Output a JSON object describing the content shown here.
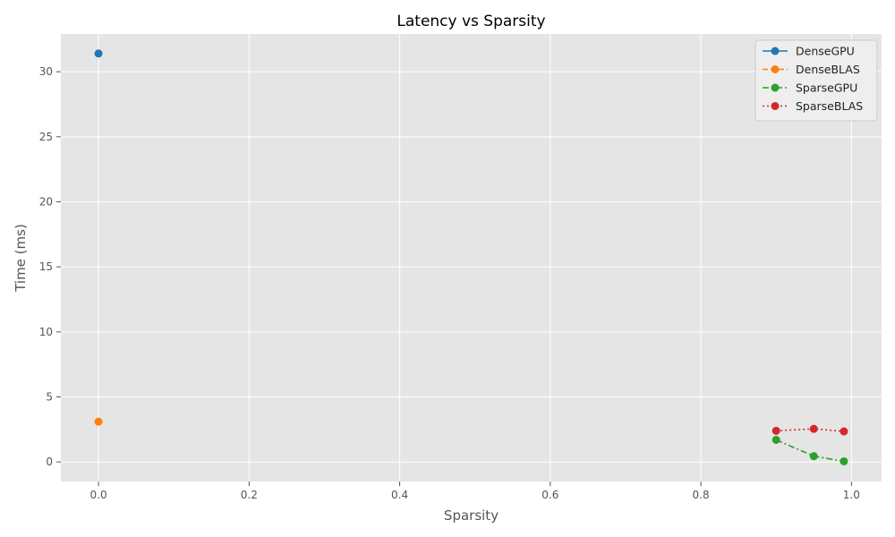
{
  "chart_data": {
    "type": "line",
    "title": "Latency vs Sparsity",
    "xlabel": "Sparsity",
    "ylabel": "Time (ms)",
    "xlim": [
      -0.05,
      1.04
    ],
    "ylim": [
      -1.5,
      32.9
    ],
    "xticks": [
      0.0,
      0.2,
      0.4,
      0.6,
      0.8,
      1.0
    ],
    "xtick_labels": [
      "0.0",
      "0.2",
      "0.4",
      "0.6",
      "0.8",
      "1.0"
    ],
    "yticks": [
      0,
      5,
      10,
      15,
      20,
      25,
      30
    ],
    "ytick_labels": [
      "0",
      "5",
      "10",
      "15",
      "20",
      "25",
      "30"
    ],
    "grid": true,
    "legend_position": "top-right",
    "background": "#e5e5e5",
    "series": [
      {
        "name": "DenseGPU",
        "color": "#1f77b4",
        "linestyle": "solid",
        "x": [
          0.0
        ],
        "y": [
          31.4
        ]
      },
      {
        "name": "DenseBLAS",
        "color": "#ff7f0e",
        "linestyle": "dashed",
        "x": [
          0.0
        ],
        "y": [
          3.1
        ]
      },
      {
        "name": "SparseGPU",
        "color": "#2ca02c",
        "linestyle": "dashdot",
        "x": [
          0.9,
          0.95,
          0.99
        ],
        "y": [
          1.7,
          0.45,
          0.05
        ]
      },
      {
        "name": "SparseBLAS",
        "color": "#d62728",
        "linestyle": "dotted",
        "x": [
          0.9,
          0.95,
          0.99
        ],
        "y": [
          2.4,
          2.55,
          2.35
        ]
      }
    ]
  }
}
